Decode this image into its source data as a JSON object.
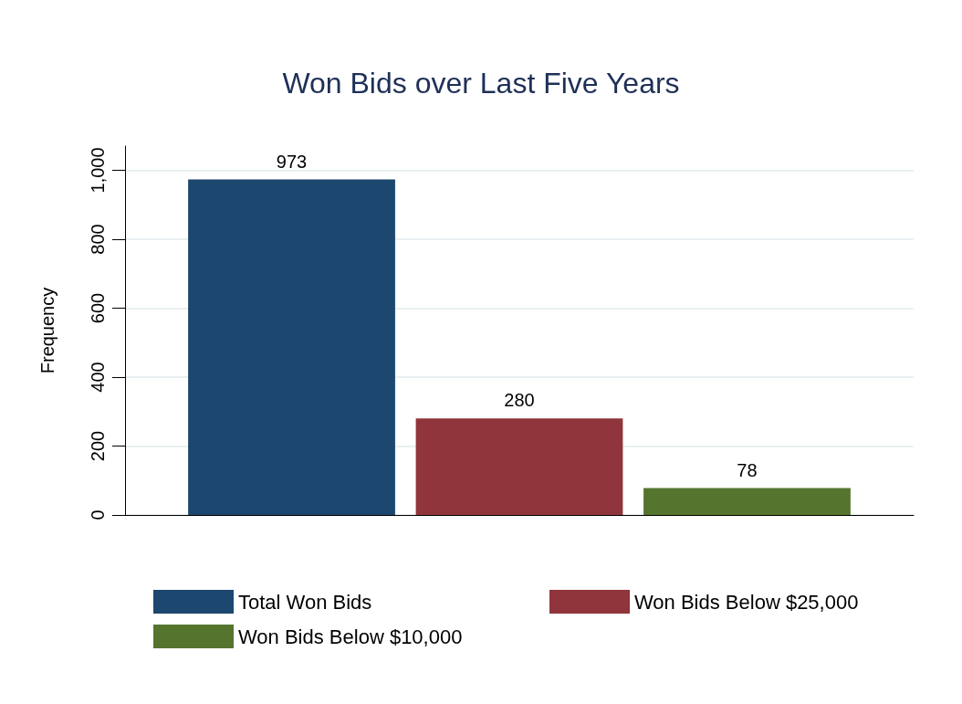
{
  "chart_data": {
    "type": "bar",
    "title": "Won Bids over Last Five Years",
    "ylabel": "Frequency",
    "categories": [
      null
    ],
    "series": [
      {
        "name": "Total Won Bids",
        "color": "#1c476e",
        "values": [
          973
        ]
      },
      {
        "name": "Won Bids Below $25,000",
        "color": "#90353b",
        "values": [
          280
        ]
      },
      {
        "name": "Won Bids Below $10,000",
        "color": "#55752f",
        "values": [
          78
        ]
      }
    ],
    "ylim": [
      0,
      1070
    ],
    "yticks": [
      0,
      200,
      400,
      600,
      800,
      {
        "value": 1000,
        "label": "1,000"
      }
    ],
    "grid": "y",
    "legend": "bottom",
    "data_labels": true
  }
}
